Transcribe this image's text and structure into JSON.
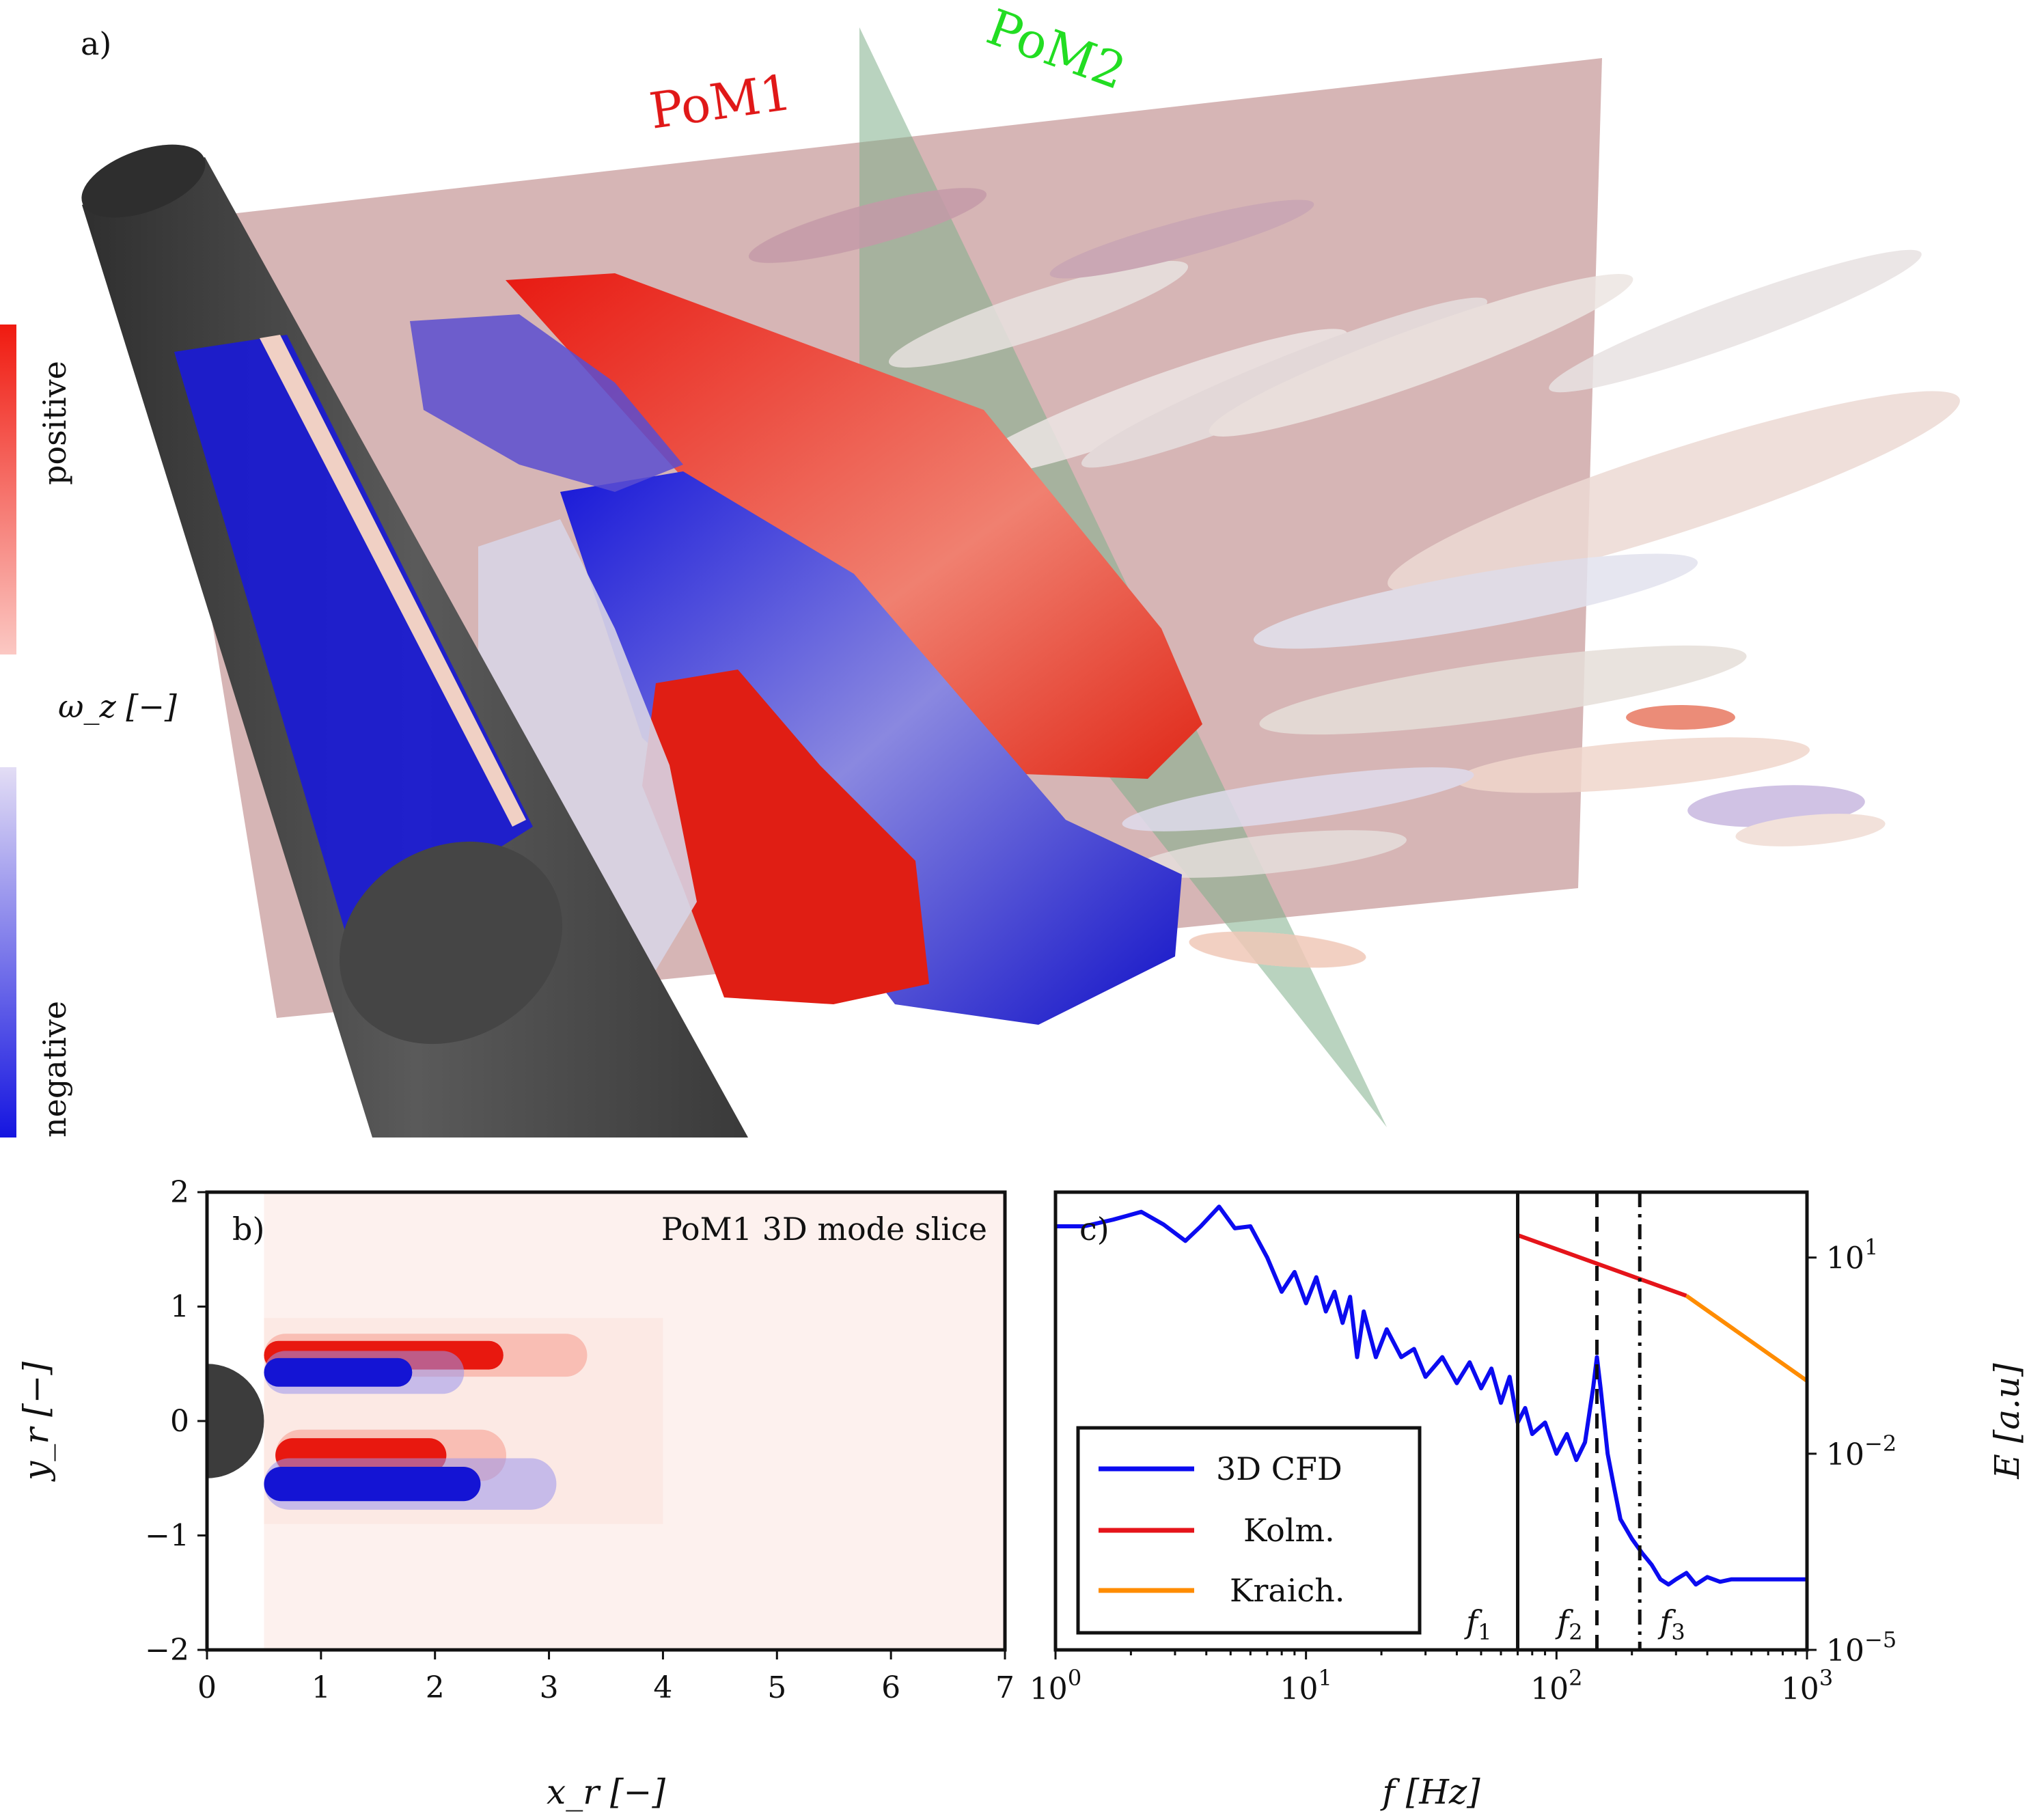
{
  "panel_a": {
    "label": "a)",
    "plane1": "PoM1",
    "plane2": "PoM2",
    "colorbar": {
      "positive": "positive",
      "negative": "negative",
      "quantity": "ω_z [−]"
    },
    "colors": {
      "positive": "#e8180f",
      "negative": "#1414d4",
      "plane1": "#b57878",
      "plane2": "#7fae8a",
      "cylinder": "#4a4a4a"
    }
  },
  "chart_data": [
    {
      "type": "heatmap",
      "panel_label": "b)",
      "title": "PoM1 3D mode slice",
      "xlabel": "x_r [−]",
      "ylabel": "y_r [−]",
      "xlim": [
        0,
        7
      ],
      "ylim": [
        -2,
        2
      ],
      "xticks": [
        "0",
        "1",
        "2",
        "3",
        "4",
        "5",
        "6",
        "7"
      ],
      "yticks": [
        "2",
        "1",
        "0",
        "−1",
        "−2"
      ],
      "cylinder_radius": 0.5,
      "structures": [
        {
          "sign": "positive",
          "x": [
            0.5,
            2.6
          ],
          "y": [
            0.45,
            0.7
          ]
        },
        {
          "sign": "negative",
          "x": [
            0.5,
            1.8
          ],
          "y": [
            0.3,
            0.55
          ]
        },
        {
          "sign": "positive",
          "x": [
            0.6,
            2.1
          ],
          "y": [
            -0.45,
            -0.15
          ]
        },
        {
          "sign": "negative",
          "x": [
            0.5,
            2.4
          ],
          "y": [
            -0.7,
            -0.4
          ]
        }
      ]
    },
    {
      "type": "line",
      "panel_label": "c)",
      "xlabel": "f [Hz]",
      "ylabel": "E [a.u]",
      "xscale": "log",
      "yscale": "log",
      "xlim": [
        1,
        1000
      ],
      "ylim": [
        1e-05,
        100
      ],
      "xticks": [
        "10^0",
        "10^1",
        "10^2",
        "10^3"
      ],
      "yticks": [
        "10^1",
        "10^−2",
        "10^−5"
      ],
      "series": [
        {
          "name": "3D CFD",
          "color": "#0b0bf0",
          "x": [
            1,
            1.3,
            1.7,
            2.2,
            2.7,
            3.3,
            3.8,
            4.5,
            5.2,
            6,
            7,
            8,
            9,
            10,
            11,
            12,
            13,
            14,
            15,
            16,
            17,
            19,
            21,
            24,
            27,
            30,
            35,
            40,
            45,
            50,
            55,
            60,
            65,
            70,
            75,
            80,
            90,
            100,
            110,
            120,
            130,
            140,
            145,
            150,
            160,
            170,
            180,
            200,
            220,
            240,
            260,
            280,
            300,
            330,
            360,
            400,
            450,
            500,
            600,
            700,
            800,
            900,
            1000
          ],
          "y": [
            30,
            30,
            38,
            50,
            32,
            18,
            30,
            60,
            28,
            30,
            10,
            3,
            6,
            2,
            5,
            1.5,
            3,
            1,
            2.5,
            0.3,
            1.5,
            0.3,
            0.8,
            0.3,
            0.4,
            0.15,
            0.3,
            0.12,
            0.25,
            0.1,
            0.2,
            0.06,
            0.15,
            0.03,
            0.05,
            0.02,
            0.03,
            0.01,
            0.02,
            0.008,
            0.015,
            0.1,
            0.3,
            0.1,
            0.01,
            0.003,
            0.001,
            0.0005,
            0.0003,
            0.0002,
            0.00012,
            0.0001,
            0.00012,
            0.00015,
            0.0001,
            0.00013,
            0.00011,
            0.00012,
            0.00012,
            0.00012,
            0.00012,
            0.00012,
            0.00012
          ]
        },
        {
          "name": "Kolm.",
          "color": "#e5141a",
          "x": [
            70,
            330
          ],
          "y": [
            22,
            2.6
          ]
        },
        {
          "name": "Kraich.",
          "color": "#ff8c00",
          "x": [
            330,
            1000
          ],
          "y": [
            2.6,
            0.13
          ]
        }
      ],
      "vlines": [
        {
          "x": 70,
          "style": "solid"
        },
        {
          "x": 145,
          "style": "dashed"
        },
        {
          "x": 215,
          "style": "dash-dot"
        }
      ],
      "annotations": [
        "f_1",
        "f_2",
        "f_3"
      ],
      "legend_position": "bottom-left"
    }
  ]
}
